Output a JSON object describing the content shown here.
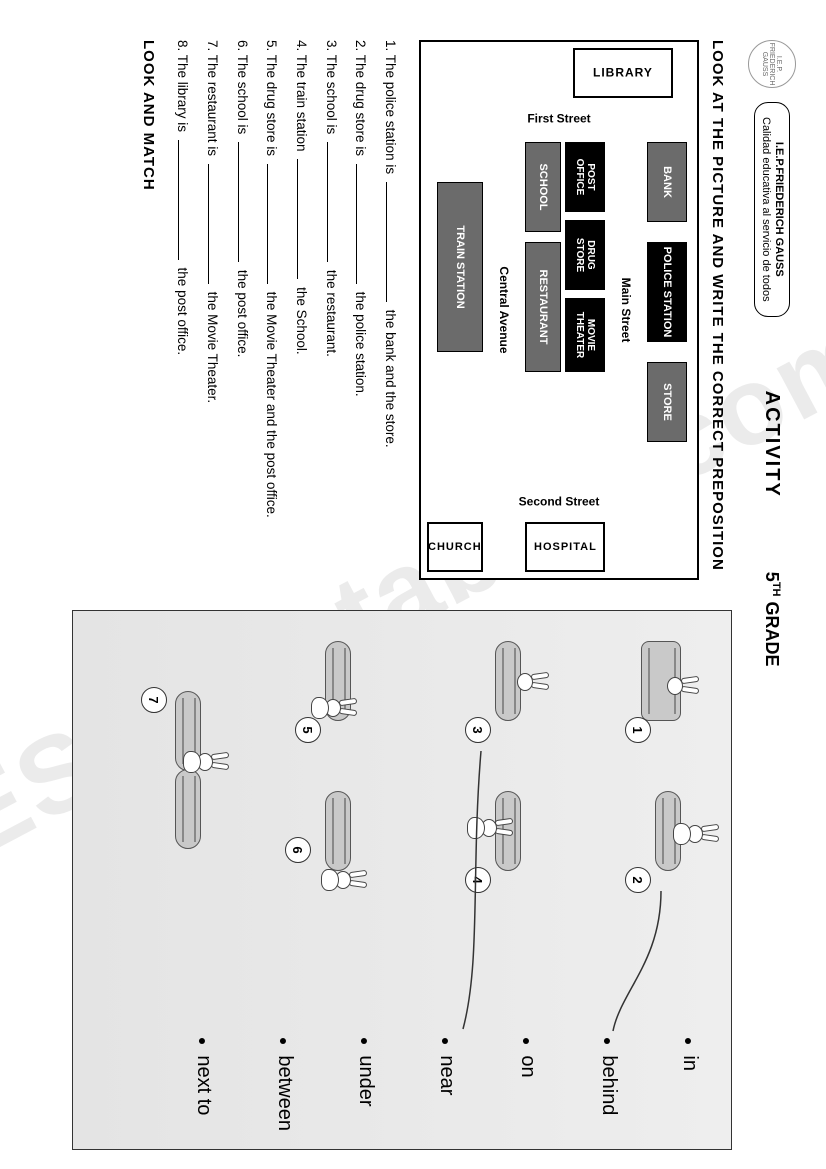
{
  "watermark": "ESLprintables.com",
  "header": {
    "logo_text": "I.E.P. FRIEDERICH GAUSS",
    "school_name": "I.E.P.FRIEDERICH GAUSS",
    "school_motto": "Calidad educativa al servicio de todos",
    "activity": "ACTIVITY",
    "grade_num": "5",
    "grade_suffix": "TH",
    "grade_word": "GRADE"
  },
  "left": {
    "instruction": "LOOK AT THE PICTURE AND WRITE THE CORRECT PREPOSITION",
    "map": {
      "streets": {
        "main": "Main Street",
        "central": "Central Avenue",
        "first": "First Street",
        "second": "Second Street"
      },
      "buildings": {
        "bank": "BANK",
        "police": "POLICE STATION",
        "store": "STORE",
        "library": "LIBRARY",
        "post_office": "POST OFFICE",
        "drug_store": "DRUG STORE",
        "movie": "MOVIE THEATER",
        "school": "SCHOOL",
        "restaurant": "RESTAURANT",
        "train": "TRAIN STATION",
        "hospital": "HOSPITAL",
        "church": "CHURCH"
      }
    },
    "questions": [
      {
        "n": "1.",
        "a": "The police station is",
        "b": "the bank and the store."
      },
      {
        "n": "2.",
        "a": "The drug store is",
        "b": "the police station."
      },
      {
        "n": "3.",
        "a": "The school is",
        "b": "the restaurant."
      },
      {
        "n": "4.",
        "a": "The train station",
        "b": "the School."
      },
      {
        "n": "5.",
        "a": "The drug store is",
        "b": "the Movie Theater and the post office."
      },
      {
        "n": "6.",
        "a": "The school is",
        "b": "the post office."
      },
      {
        "n": "7.",
        "a": "The restaurant is",
        "b": "the Movie Theater."
      },
      {
        "n": "8.",
        "a": "The library is",
        "b": "the post office."
      }
    ]
  },
  "right": {
    "instruction": "LOOK AND MATCH",
    "words": [
      "in",
      "behind",
      "on",
      "near",
      "under",
      "between",
      "next to"
    ],
    "scenes": [
      1,
      2,
      3,
      4,
      5,
      6,
      7
    ],
    "colors": {
      "panel_bg": "#e6e6e6",
      "line": "#333333"
    }
  }
}
